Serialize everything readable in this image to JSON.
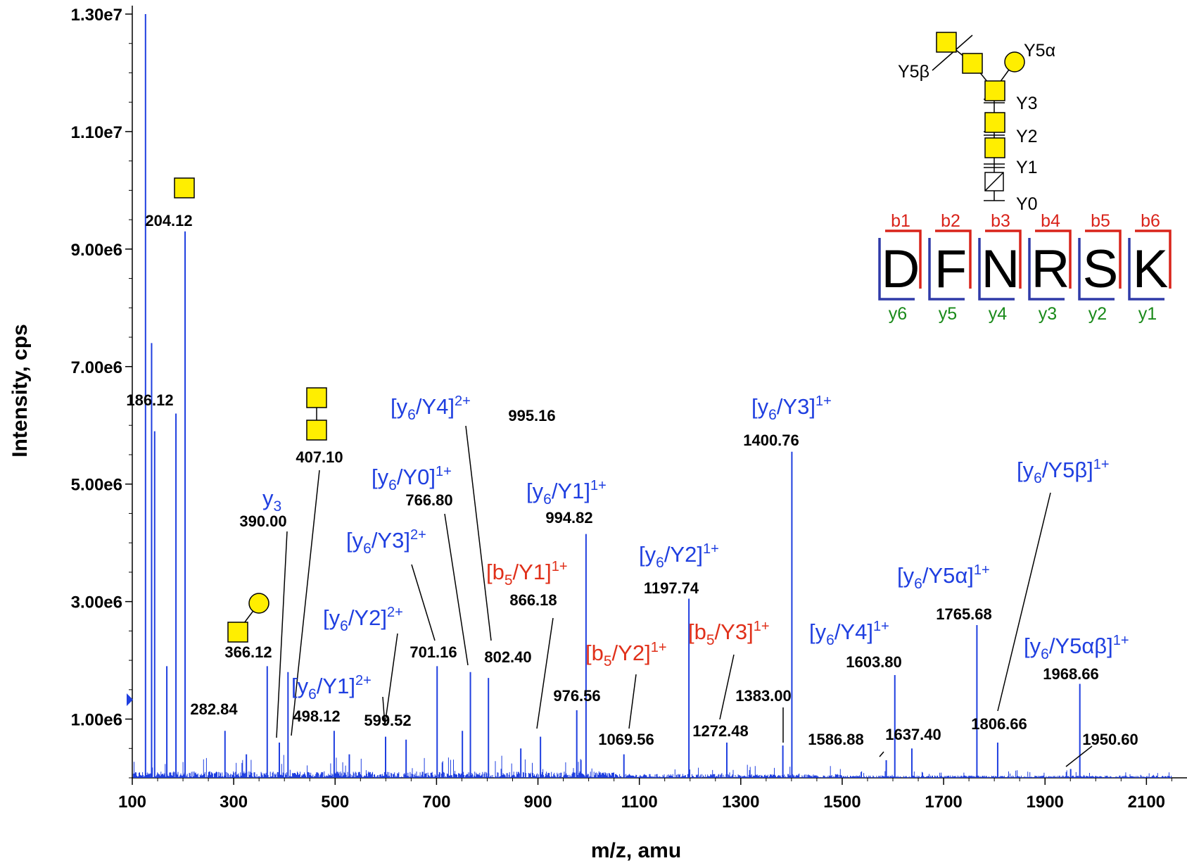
{
  "colors": {
    "spectrum": "#1f3fe0",
    "ion_blue": "#1f3fe0",
    "ion_red": "#e0301a",
    "y_green": "#1a8a1a",
    "b_red": "#d9231a",
    "bracket_blue": "#2f3aa8",
    "glycan_fill": "#ffee00"
  },
  "chart_data": {
    "type": "bar",
    "xlabel": "m/z, amu",
    "ylabel": "Intensity, cps",
    "xlim": [
      100,
      2180
    ],
    "ylim": [
      0,
      13000000
    ],
    "x_ticks": [
      {
        "value": 100,
        "label": "100"
      },
      {
        "value": 300,
        "label": "300"
      },
      {
        "value": 500,
        "label": "500"
      },
      {
        "value": 700,
        "label": "700"
      },
      {
        "value": 900,
        "label": "900"
      },
      {
        "value": 1100,
        "label": "1100"
      },
      {
        "value": 1300,
        "label": "1300"
      },
      {
        "value": 1500,
        "label": "1500"
      },
      {
        "value": 1700,
        "label": "1700"
      },
      {
        "value": 1900,
        "label": "1900"
      },
      {
        "value": 2100,
        "label": "2100"
      }
    ],
    "y_ticks": [
      {
        "value": 1000000,
        "label": "1.00e6"
      },
      {
        "value": 3000000,
        "label": "3.00e6"
      },
      {
        "value": 5000000,
        "label": "5.00e6"
      },
      {
        "value": 7000000,
        "label": "7.00e6"
      },
      {
        "value": 9000000,
        "label": "9.00e6"
      },
      {
        "value": 11000000,
        "label": "1.10e7"
      },
      {
        "value": 13000000,
        "label": "1.30e7"
      }
    ],
    "peaks": [
      {
        "mz": 126.1,
        "intensity": 13000000
      },
      {
        "mz": 138.1,
        "intensity": 7400000
      },
      {
        "mz": 144.1,
        "intensity": 5900000
      },
      {
        "mz": 168.1,
        "intensity": 1900000
      },
      {
        "mz": 186.12,
        "intensity": 6200000
      },
      {
        "mz": 204.12,
        "intensity": 9300000
      },
      {
        "mz": 282.84,
        "intensity": 800000
      },
      {
        "mz": 325.0,
        "intensity": 400000
      },
      {
        "mz": 366.12,
        "intensity": 1900000
      },
      {
        "mz": 390.0,
        "intensity": 600000
      },
      {
        "mz": 407.1,
        "intensity": 1800000
      },
      {
        "mz": 498.12,
        "intensity": 800000
      },
      {
        "mz": 528.0,
        "intensity": 400000
      },
      {
        "mz": 599.52,
        "intensity": 700000
      },
      {
        "mz": 640.0,
        "intensity": 650000
      },
      {
        "mz": 701.16,
        "intensity": 1900000
      },
      {
        "mz": 751.0,
        "intensity": 800000
      },
      {
        "mz": 766.8,
        "intensity": 1800000
      },
      {
        "mz": 802.4,
        "intensity": 1700000
      },
      {
        "mz": 866.18,
        "intensity": 500000
      },
      {
        "mz": 905.0,
        "intensity": 700000
      },
      {
        "mz": 976.56,
        "intensity": 1150000
      },
      {
        "mz": 994.82,
        "intensity": 4150000
      },
      {
        "mz": 1069.56,
        "intensity": 400000
      },
      {
        "mz": 1197.74,
        "intensity": 3050000
      },
      {
        "mz": 1272.48,
        "intensity": 600000
      },
      {
        "mz": 1383.0,
        "intensity": 550000
      },
      {
        "mz": 1400.76,
        "intensity": 5550000
      },
      {
        "mz": 1586.88,
        "intensity": 300000
      },
      {
        "mz": 1603.8,
        "intensity": 1750000
      },
      {
        "mz": 1637.4,
        "intensity": 500000
      },
      {
        "mz": 1765.68,
        "intensity": 2600000
      },
      {
        "mz": 1806.66,
        "intensity": 600000
      },
      {
        "mz": 1950.6,
        "intensity": 150000
      },
      {
        "mz": 1968.66,
        "intensity": 1600000
      }
    ],
    "peak_labels": [
      {
        "text": "204.12",
        "mz": 204.12,
        "y": 9300000
      },
      {
        "text": "186.12",
        "mz": 186.12,
        "y": 6200000
      },
      {
        "text": "407.10",
        "mz": 407.1,
        "y": 5300000
      },
      {
        "text": "390.00",
        "mz": 390.0,
        "y": 4200000
      },
      {
        "text": "366.12",
        "mz": 366.12,
        "y": 2000000
      },
      {
        "text": "282.84",
        "mz": 282.84,
        "y": 1000000
      },
      {
        "text": "498.12",
        "mz": 498.12,
        "y": 900000
      },
      {
        "text": "599.52",
        "mz": 599.52,
        "y": 800000
      },
      {
        "text": "701.16",
        "mz": 701.16,
        "y": 2000000
      },
      {
        "text": "766.80",
        "mz": 766.8,
        "y": 4800000
      },
      {
        "text": "802.40",
        "mz": 802.4,
        "y": 1900000
      },
      {
        "text": "995.16",
        "mz": 995.16,
        "y": 6100000
      },
      {
        "text": "866.18",
        "mz": 866.18,
        "y": 2800000
      },
      {
        "text": "994.82",
        "mz": 994.82,
        "y": 4300000
      },
      {
        "text": "976.56",
        "mz": 976.56,
        "y": 1200000
      },
      {
        "text": "1069.56",
        "mz": 1069.56,
        "y": 500000
      },
      {
        "text": "1197.74",
        "mz": 1197.74,
        "y": 3150000
      },
      {
        "text": "1272.48",
        "mz": 1272.48,
        "y": 600000
      },
      {
        "text": "1383.00",
        "mz": 1383.0,
        "y": 1200000
      },
      {
        "text": "1400.76",
        "mz": 1400.76,
        "y": 5600000
      },
      {
        "text": "1586.88",
        "mz": 1586.88,
        "y": 500000
      },
      {
        "text": "1603.80",
        "mz": 1603.8,
        "y": 1800000
      },
      {
        "text": "1637.40",
        "mz": 1637.4,
        "y": 600000
      },
      {
        "text": "1765.68",
        "mz": 1765.68,
        "y": 2650000
      },
      {
        "text": "1806.66",
        "mz": 1806.66,
        "y": 850000
      },
      {
        "text": "1968.66",
        "mz": 1968.66,
        "y": 1650000
      },
      {
        "text": "1950.60",
        "mz": 1950.6,
        "y": 500000
      }
    ],
    "ion_annotations": [
      {
        "base": "y",
        "sub": "3",
        "close": "",
        "sup": "",
        "color": "blue"
      },
      {
        "base": "[y",
        "sub": "6",
        "close": "/Y4]",
        "sup": "2+",
        "color": "blue"
      },
      {
        "base": "[y",
        "sub": "6",
        "close": "/Y0]",
        "sup": "1+",
        "color": "blue"
      },
      {
        "base": "[y",
        "sub": "6",
        "close": "/Y3]",
        "sup": "2+",
        "color": "blue"
      },
      {
        "base": "[y",
        "sub": "6",
        "close": "/Y2]",
        "sup": "2+",
        "color": "blue"
      },
      {
        "base": "[y",
        "sub": "6",
        "close": "/Y1]",
        "sup": "2+",
        "color": "blue"
      },
      {
        "base": "[b",
        "sub": "5",
        "close": "/Y1]",
        "sup": "1+",
        "color": "red"
      },
      {
        "base": "[y",
        "sub": "6",
        "close": "/Y1]",
        "sup": "1+",
        "color": "blue"
      },
      {
        "base": "[b",
        "sub": "5",
        "close": "/Y2]",
        "sup": "1+",
        "color": "red"
      },
      {
        "base": "[y",
        "sub": "6",
        "close": "/Y2]",
        "sup": "1+",
        "color": "blue"
      },
      {
        "base": "[b",
        "sub": "5",
        "close": "/Y3]",
        "sup": "1+",
        "color": "red"
      },
      {
        "base": "[y",
        "sub": "6",
        "close": "/Y3]",
        "sup": "1+",
        "color": "blue"
      },
      {
        "base": "[y",
        "sub": "6",
        "close": "/Y4]",
        "sup": "1+",
        "color": "blue"
      },
      {
        "base": "[y",
        "sub": "6",
        "close": "/Y5α]",
        "sup": "1+",
        "color": "blue"
      },
      {
        "base": "[y",
        "sub": "6",
        "close": "/Y5β]",
        "sup": "1+",
        "color": "blue"
      },
      {
        "base": "[y",
        "sub": "6",
        "close": "/Y5αβ]",
        "sup": "1+",
        "color": "blue"
      }
    ]
  },
  "glycan_inset": {
    "labels": [
      "Y5β",
      "Y5α",
      "Y3",
      "Y2",
      "Y1",
      "Y0"
    ],
    "peptide": [
      "D",
      "F",
      "N",
      "R",
      "S",
      "K"
    ],
    "b_ions": [
      "b1",
      "b2",
      "b3",
      "b4",
      "b5",
      "b6"
    ],
    "y_ions": [
      "y6",
      "y5",
      "y4",
      "y3",
      "y2",
      "y1"
    ]
  }
}
